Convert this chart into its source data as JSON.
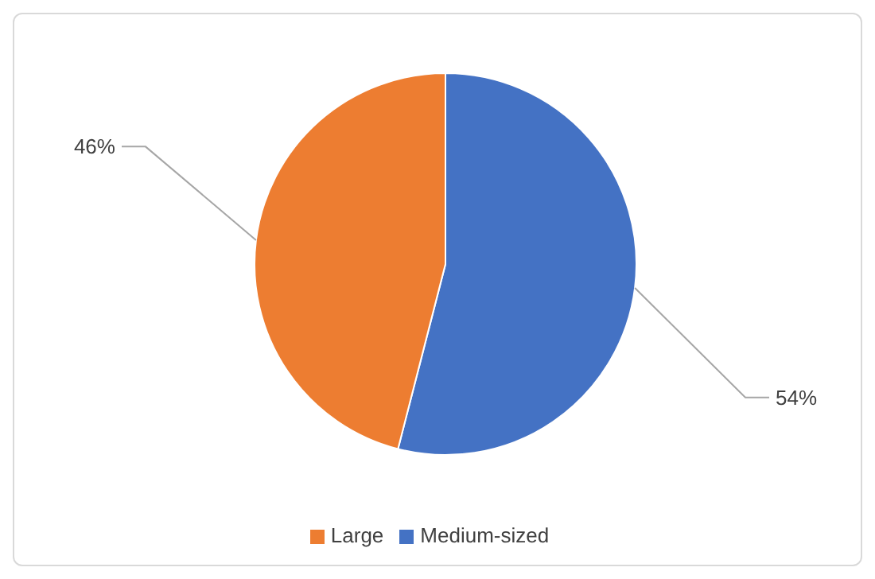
{
  "chart_data": {
    "type": "pie",
    "categories": [
      "Medium-sized",
      "Large"
    ],
    "values": [
      54,
      46
    ],
    "colors": [
      "#4472c4",
      "#ed7d31"
    ],
    "value_labels": [
      "54%",
      "46%"
    ],
    "legend": "bottom"
  }
}
